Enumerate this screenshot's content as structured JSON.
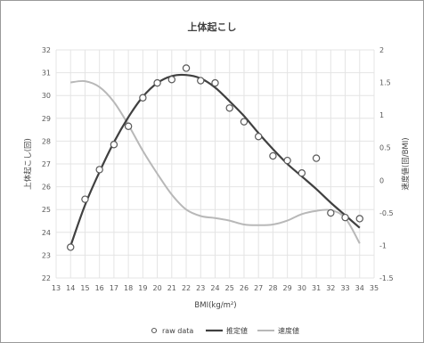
{
  "chart_data": {
    "type": "scatter",
    "title": "上体起こし",
    "xlabel": "BMI(kg/m²)",
    "ylabel": "上体起こし(回)",
    "y2label": "速度値(回/BMI)",
    "xlim": [
      13,
      35
    ],
    "ylim": [
      22,
      32
    ],
    "y2lim": [
      -1.5,
      2
    ],
    "grid": true,
    "legend_position": "bottom",
    "x_ticks": [
      "13",
      "14",
      "15",
      "16",
      "17",
      "18",
      "19",
      "20",
      "21",
      "22",
      "23",
      "24",
      "25",
      "26",
      "27",
      "28",
      "29",
      "30",
      "31",
      "32",
      "33",
      "34",
      "35"
    ],
    "y_ticks": [
      "22",
      "23",
      "24",
      "25",
      "26",
      "27",
      "28",
      "29",
      "30",
      "31",
      "32"
    ],
    "y2_ticks": [
      "-1.5",
      "-1",
      "-0.5",
      "0",
      "0.5",
      "1",
      "1.5",
      "2"
    ],
    "legend": [
      "raw data",
      "推定値",
      "速度値"
    ],
    "series": [
      {
        "name": "raw data",
        "kind": "points",
        "color": "#595959",
        "x": [
          14,
          15,
          16,
          17,
          18,
          19,
          20,
          21,
          22,
          23,
          24,
          25,
          26,
          27,
          28,
          29,
          30,
          31,
          32,
          33,
          34
        ],
        "y": [
          23.35,
          25.45,
          26.75,
          27.85,
          28.65,
          29.9,
          30.55,
          30.7,
          31.2,
          30.65,
          30.55,
          29.45,
          28.85,
          28.2,
          27.35,
          27.15,
          26.6,
          27.25,
          24.85,
          24.65,
          24.6
        ]
      },
      {
        "name": "推定値",
        "kind": "line",
        "axis": "left",
        "color": "#404040",
        "x": [
          14,
          15,
          16,
          17,
          18,
          19,
          20,
          21,
          22,
          23,
          24,
          25,
          26,
          27,
          28,
          29,
          30,
          31,
          32,
          33,
          34
        ],
        "y": [
          23.4,
          25.2,
          26.65,
          27.95,
          29.05,
          29.95,
          30.55,
          30.85,
          30.9,
          30.75,
          30.35,
          29.75,
          29.1,
          28.35,
          27.65,
          27.0,
          26.45,
          25.9,
          25.3,
          24.75,
          24.2
        ]
      },
      {
        "name": "速度値",
        "kind": "line",
        "axis": "right",
        "color": "#b8b8b8",
        "x": [
          14,
          15,
          16,
          17,
          18,
          19,
          20,
          21,
          22,
          23,
          24,
          25,
          26,
          27,
          28,
          29,
          30,
          31,
          32,
          33,
          34
        ],
        "y": [
          1.5,
          1.52,
          1.43,
          1.2,
          0.85,
          0.45,
          0.1,
          -0.22,
          -0.45,
          -0.55,
          -0.58,
          -0.62,
          -0.68,
          -0.69,
          -0.68,
          -0.62,
          -0.52,
          -0.47,
          -0.46,
          -0.58,
          -0.97
        ]
      }
    ]
  }
}
